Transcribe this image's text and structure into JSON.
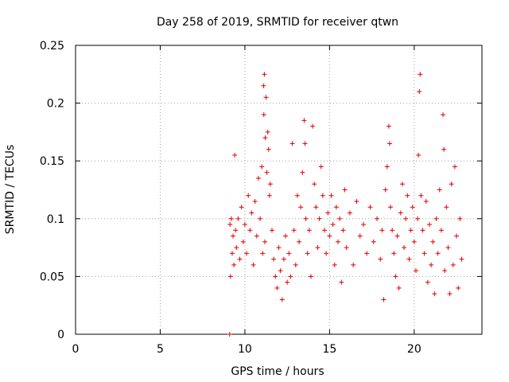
{
  "chart_data": {
    "type": "scatter",
    "title": "Day 258 of 2019, SRMTID for receiver qtwn",
    "xlabel": "GPS time / hours",
    "ylabel": "SRMTID / TECUs",
    "xlim": [
      0,
      24
    ],
    "ylim": [
      0,
      0.25
    ],
    "xticks": [
      0,
      5,
      10,
      15,
      20
    ],
    "xtick_labels": [
      "0",
      "5",
      "10",
      "15",
      "20"
    ],
    "yticks": [
      0,
      0.05,
      0.1,
      0.15,
      0.2,
      0.25
    ],
    "ytick_labels": [
      "0",
      "0.05",
      "0.1",
      "0.15",
      "0.2",
      "0.25"
    ],
    "grid": true,
    "marker": "+",
    "color": "#e00000",
    "series": [
      {
        "name": "SRMTID",
        "note": "Dense cloud of ~1500 samples between 9.1 h and 22.8 h, mostly 0.03–0.13 TECU; listed points are representative.",
        "points": [
          [
            9.1,
            0.0
          ],
          [
            9.12,
            0.095
          ],
          [
            9.15,
            0.05
          ],
          [
            9.2,
            0.1
          ],
          [
            9.25,
            0.07
          ],
          [
            9.3,
            0.085
          ],
          [
            9.35,
            0.06
          ],
          [
            9.4,
            0.155
          ],
          [
            9.45,
            0.09
          ],
          [
            9.5,
            0.075
          ],
          [
            9.6,
            0.1
          ],
          [
            9.7,
            0.065
          ],
          [
            9.8,
            0.11
          ],
          [
            9.9,
            0.08
          ],
          [
            10.0,
            0.095
          ],
          [
            10.1,
            0.07
          ],
          [
            10.2,
            0.12
          ],
          [
            10.3,
            0.09
          ],
          [
            10.4,
            0.105
          ],
          [
            10.5,
            0.06
          ],
          [
            10.6,
            0.115
          ],
          [
            10.7,
            0.085
          ],
          [
            10.8,
            0.135
          ],
          [
            10.9,
            0.1
          ],
          [
            11.0,
            0.145
          ],
          [
            11.05,
            0.07
          ],
          [
            11.1,
            0.215
          ],
          [
            11.12,
            0.19
          ],
          [
            11.15,
            0.225
          ],
          [
            11.18,
            0.08
          ],
          [
            11.2,
            0.17
          ],
          [
            11.25,
            0.205
          ],
          [
            11.3,
            0.14
          ],
          [
            11.35,
            0.175
          ],
          [
            11.4,
            0.16
          ],
          [
            11.45,
            0.12
          ],
          [
            11.5,
            0.13
          ],
          [
            11.6,
            0.09
          ],
          [
            11.7,
            0.065
          ],
          [
            11.8,
            0.05
          ],
          [
            11.9,
            0.04
          ],
          [
            12.0,
            0.075
          ],
          [
            12.1,
            0.055
          ],
          [
            12.2,
            0.03
          ],
          [
            12.3,
            0.065
          ],
          [
            12.4,
            0.085
          ],
          [
            12.5,
            0.045
          ],
          [
            12.6,
            0.07
          ],
          [
            12.7,
            0.05
          ],
          [
            12.8,
            0.165
          ],
          [
            12.9,
            0.09
          ],
          [
            13.0,
            0.06
          ],
          [
            13.1,
            0.12
          ],
          [
            13.2,
            0.08
          ],
          [
            13.3,
            0.11
          ],
          [
            13.4,
            0.14
          ],
          [
            13.5,
            0.185
          ],
          [
            13.55,
            0.165
          ],
          [
            13.6,
            0.1
          ],
          [
            13.7,
            0.07
          ],
          [
            13.8,
            0.09
          ],
          [
            13.9,
            0.05
          ],
          [
            14.0,
            0.18
          ],
          [
            14.1,
            0.13
          ],
          [
            14.2,
            0.11
          ],
          [
            14.3,
            0.075
          ],
          [
            14.4,
            0.1
          ],
          [
            14.5,
            0.145
          ],
          [
            14.6,
            0.12
          ],
          [
            14.7,
            0.09
          ],
          [
            14.8,
            0.07
          ],
          [
            14.9,
            0.105
          ],
          [
            15.0,
            0.085
          ],
          [
            15.1,
            0.12
          ],
          [
            15.2,
            0.095
          ],
          [
            15.3,
            0.06
          ],
          [
            15.4,
            0.11
          ],
          [
            15.5,
            0.08
          ],
          [
            15.6,
            0.1
          ],
          [
            15.7,
            0.045
          ],
          [
            15.8,
            0.09
          ],
          [
            15.9,
            0.125
          ],
          [
            16.0,
            0.075
          ],
          [
            16.2,
            0.105
          ],
          [
            16.4,
            0.06
          ],
          [
            16.6,
            0.115
          ],
          [
            16.8,
            0.085
          ],
          [
            17.0,
            0.095
          ],
          [
            17.2,
            0.07
          ],
          [
            17.4,
            0.11
          ],
          [
            17.6,
            0.08
          ],
          [
            17.8,
            0.1
          ],
          [
            18.0,
            0.065
          ],
          [
            18.1,
            0.09
          ],
          [
            18.2,
            0.03
          ],
          [
            18.3,
            0.125
          ],
          [
            18.4,
            0.145
          ],
          [
            18.5,
            0.18
          ],
          [
            18.55,
            0.165
          ],
          [
            18.6,
            0.11
          ],
          [
            18.7,
            0.09
          ],
          [
            18.8,
            0.07
          ],
          [
            18.9,
            0.05
          ],
          [
            19.0,
            0.085
          ],
          [
            19.1,
            0.04
          ],
          [
            19.2,
            0.105
          ],
          [
            19.3,
            0.13
          ],
          [
            19.4,
            0.075
          ],
          [
            19.5,
            0.1
          ],
          [
            19.6,
            0.12
          ],
          [
            19.7,
            0.065
          ],
          [
            19.8,
            0.09
          ],
          [
            19.9,
            0.11
          ],
          [
            20.0,
            0.08
          ],
          [
            20.1,
            0.055
          ],
          [
            20.2,
            0.1
          ],
          [
            20.25,
            0.155
          ],
          [
            20.3,
            0.21
          ],
          [
            20.35,
            0.225
          ],
          [
            20.4,
            0.12
          ],
          [
            20.5,
            0.09
          ],
          [
            20.6,
            0.07
          ],
          [
            20.7,
            0.115
          ],
          [
            20.8,
            0.045
          ],
          [
            20.9,
            0.095
          ],
          [
            21.0,
            0.06
          ],
          [
            21.1,
            0.08
          ],
          [
            21.2,
            0.035
          ],
          [
            21.3,
            0.1
          ],
          [
            21.4,
            0.07
          ],
          [
            21.5,
            0.125
          ],
          [
            21.6,
            0.09
          ],
          [
            21.7,
            0.19
          ],
          [
            21.75,
            0.16
          ],
          [
            21.8,
            0.055
          ],
          [
            21.9,
            0.11
          ],
          [
            22.0,
            0.075
          ],
          [
            22.1,
            0.035
          ],
          [
            22.2,
            0.13
          ],
          [
            22.3,
            0.06
          ],
          [
            22.4,
            0.145
          ],
          [
            22.5,
            0.085
          ],
          [
            22.6,
            0.04
          ],
          [
            22.7,
            0.1
          ],
          [
            22.8,
            0.065
          ]
        ]
      }
    ]
  }
}
